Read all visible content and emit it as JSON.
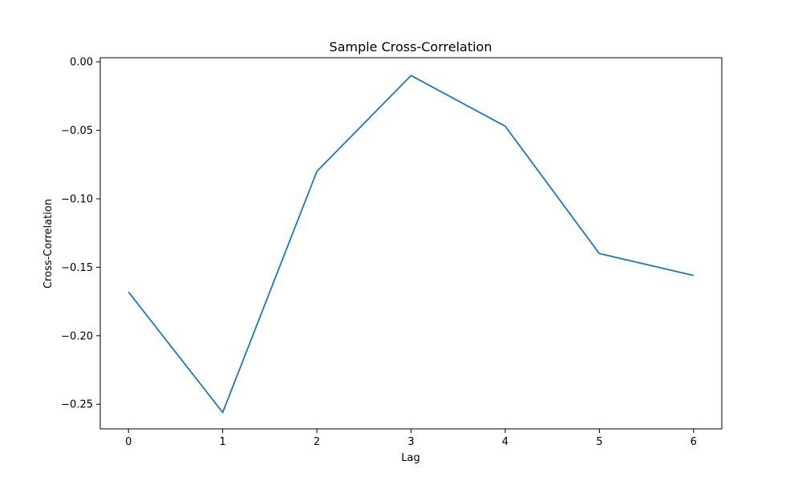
{
  "chart_data": {
    "type": "line",
    "title": "Sample Cross-Correlation",
    "xlabel": "Lag",
    "ylabel": "Cross-Correlation",
    "xlim": [
      -0.3,
      6.3
    ],
    "ylim": [
      -0.268,
      0.003
    ],
    "xticks": [
      0,
      1,
      2,
      3,
      4,
      5,
      6
    ],
    "xtick_labels": [
      "0",
      "1",
      "2",
      "3",
      "4",
      "5",
      "6"
    ],
    "yticks": [
      0.0,
      -0.05,
      -0.1,
      -0.15,
      -0.2,
      -0.25
    ],
    "ytick_labels": [
      "0.00",
      "−0.05",
      "−0.10",
      "−0.15",
      "−0.20",
      "−0.25"
    ],
    "grid": false,
    "series": [
      {
        "color": "#1f77b4",
        "x": [
          0,
          1,
          2,
          3,
          4,
          5,
          6
        ],
        "y": [
          -0.168,
          -0.256,
          -0.08,
          -0.01,
          -0.047,
          -0.14,
          -0.156
        ]
      }
    ]
  }
}
